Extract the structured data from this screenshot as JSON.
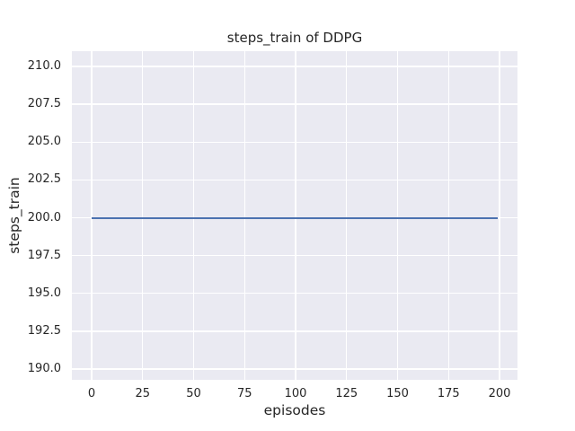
{
  "figure": {
    "title": "steps_train of DDPG"
  },
  "chart_data": {
    "type": "line",
    "title": "steps_train of DDPG",
    "xlabel": "episodes",
    "ylabel": "steps_train",
    "series": [
      {
        "name": "steps_train",
        "x": [
          0,
          199
        ],
        "y": [
          200,
          200
        ],
        "color": "#4c72b0",
        "description": "constant horizontal line at steps_train = 200 for episodes 0 through 199"
      }
    ],
    "xticks": [
      "0",
      "25",
      "50",
      "75",
      "100",
      "125",
      "150",
      "175",
      "200"
    ],
    "yticks": [
      "210.0",
      "207.5",
      "205.0",
      "202.5",
      "200.0",
      "197.5",
      "195.0",
      "192.5",
      "190.0"
    ],
    "xtick_values": [
      0,
      25,
      50,
      75,
      100,
      125,
      150,
      175,
      200
    ],
    "ytick_values": [
      210.0,
      207.5,
      205.0,
      202.5,
      200.0,
      197.5,
      195.0,
      192.5,
      190.0
    ],
    "xlim": [
      -10,
      209
    ],
    "ylim": [
      189.3,
      211.0
    ],
    "grid": true,
    "legend": false,
    "line_color": "#4c72b0",
    "plot_bg": "#eaeaf2",
    "grid_color": "#ffffff",
    "text_color": "#262626"
  }
}
